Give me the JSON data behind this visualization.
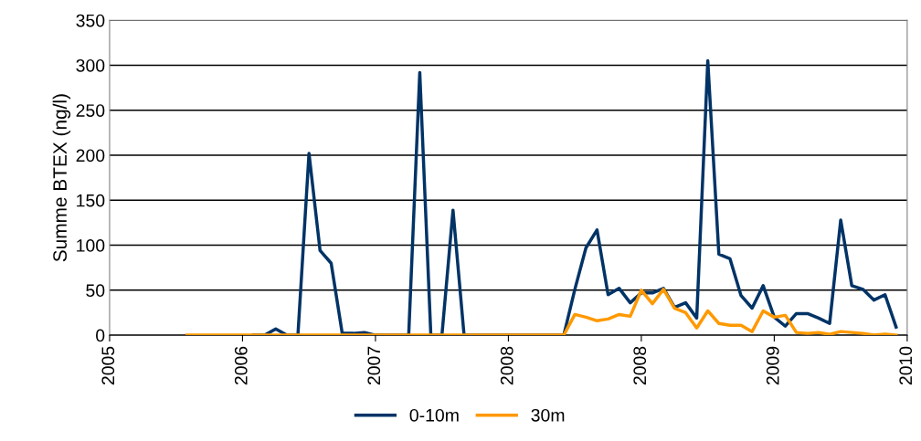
{
  "chart_data": {
    "type": "line",
    "ylabel": "Summe BTEX (ng/l)",
    "categories": [
      "2005",
      null,
      null,
      null,
      null,
      null,
      null,
      null,
      null,
      null,
      null,
      null,
      "2006",
      null,
      null,
      null,
      null,
      null,
      null,
      null,
      null,
      null,
      null,
      null,
      "2007",
      null,
      null,
      null,
      null,
      null,
      null,
      null,
      null,
      null,
      null,
      null,
      "2008",
      null,
      null,
      null,
      null,
      null,
      null,
      null,
      null,
      null,
      null,
      null,
      "2008",
      null,
      null,
      null,
      null,
      null,
      null,
      null,
      null,
      null,
      null,
      null,
      "2009",
      null,
      null,
      null,
      null,
      null,
      null,
      null,
      null,
      null,
      null,
      null,
      "2010"
    ],
    "ylim": [
      0,
      350
    ],
    "yticks": [
      0,
      50,
      100,
      150,
      200,
      250,
      300,
      350
    ],
    "grid": "y",
    "legend": "bottom",
    "marker": "none",
    "line_style": "solid",
    "series": [
      {
        "name": "0-10m",
        "color": "#003366",
        "values": [
          null,
          null,
          null,
          null,
          null,
          null,
          null,
          null,
          null,
          null,
          null,
          null,
          null,
          0,
          0,
          7,
          0,
          0,
          202,
          94,
          80,
          2,
          2,
          3,
          0,
          0,
          0,
          0,
          292,
          0,
          0,
          139,
          0,
          0,
          0,
          0,
          0,
          0,
          0,
          0,
          0,
          0,
          51,
          97,
          117,
          45,
          52,
          36,
          47,
          47,
          52,
          31,
          36,
          19,
          305,
          90,
          85,
          44,
          30,
          55,
          20,
          10,
          24,
          24,
          19,
          13,
          128,
          55,
          51,
          39,
          45,
          9,
          null
        ]
      },
      {
        "name": "30m",
        "color": "#ff9900",
        "values": [
          null,
          null,
          null,
          null,
          null,
          null,
          null,
          0,
          0,
          0,
          0,
          0,
          0,
          0,
          0,
          0,
          0,
          0,
          0,
          0,
          0,
          0,
          0,
          0,
          0,
          0,
          0,
          0,
          0,
          0,
          0,
          0,
          0,
          0,
          0,
          0,
          0,
          0,
          0,
          0,
          0,
          0,
          23,
          20,
          16,
          18,
          23,
          21,
          50,
          35,
          51,
          30,
          25,
          8,
          27,
          13,
          11,
          11,
          4,
          27,
          20,
          22,
          3,
          2,
          3,
          1,
          4,
          3,
          2,
          0,
          1,
          0,
          null
        ]
      }
    ]
  }
}
